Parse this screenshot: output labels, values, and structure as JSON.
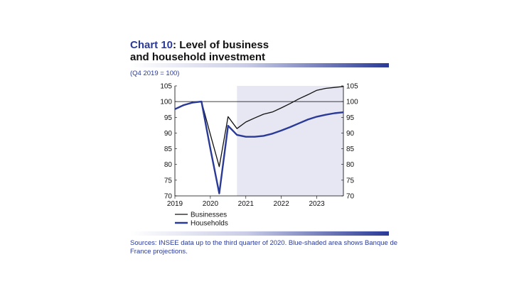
{
  "header": {
    "title_accent": "Chart 10",
    "title_rest": ": Level of business",
    "title_line2": "and household investment",
    "subtitle": "(Q4 2019 = 100)"
  },
  "source": "Sources: INSEE data up to the third quarter of 2020. Blue-shaded area shows Banque de France projections.",
  "colors": {
    "businesses": "#111111",
    "households": "#2a3a97",
    "projection_shade": "#e6e7f2",
    "accent": "#2a3a97"
  },
  "chart_data": {
    "type": "line",
    "title": "Level of business and household investment",
    "subtitle": "(Q4 2019 = 100)",
    "xlabel": "",
    "ylabel": "",
    "xlim": [
      2019,
      2023.75
    ],
    "ylim": [
      70,
      105
    ],
    "yticks": [
      70,
      75,
      80,
      85,
      90,
      95,
      100,
      105
    ],
    "xticks": [
      "2019",
      "2020",
      "2021",
      "2022",
      "2023"
    ],
    "reference_line": 100,
    "projection_start": 2020.75,
    "legend_position": "bottom-left",
    "grid": false,
    "series": [
      {
        "name": "Businesses",
        "x": [
          2019,
          2019.25,
          2019.5,
          2019.75,
          2020,
          2020.25,
          2020.5,
          2020.75,
          2021,
          2021.25,
          2021.5,
          2021.75,
          2022,
          2022.25,
          2022.5,
          2022.75,
          2023,
          2023.25,
          2023.5,
          2023.75
        ],
        "y": [
          97.7,
          98.8,
          99.6,
          100,
          89.5,
          79.3,
          95.2,
          91.4,
          93.5,
          94.8,
          96.0,
          96.7,
          98.0,
          99.4,
          100.9,
          102.2,
          103.6,
          104.2,
          104.5,
          104.8
        ]
      },
      {
        "name": "Households",
        "x": [
          2019,
          2019.25,
          2019.5,
          2019.75,
          2020,
          2020.25,
          2020.5,
          2020.75,
          2021,
          2021.25,
          2021.5,
          2021.75,
          2022,
          2022.25,
          2022.5,
          2022.75,
          2023,
          2023.25,
          2023.5,
          2023.75
        ],
        "y": [
          97.6,
          98.9,
          99.7,
          100,
          85.0,
          70.8,
          92.3,
          89.4,
          88.8,
          88.8,
          89.1,
          89.8,
          90.8,
          91.9,
          93.1,
          94.3,
          95.2,
          95.8,
          96.3,
          96.6
        ]
      }
    ]
  }
}
